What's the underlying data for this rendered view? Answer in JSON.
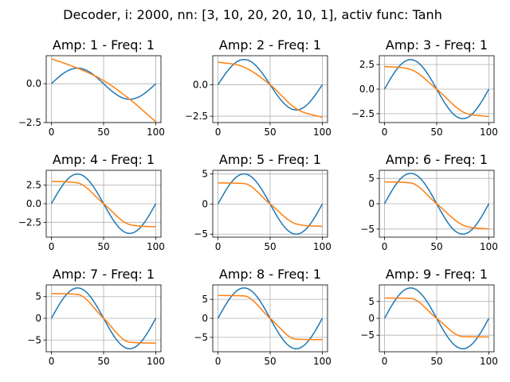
{
  "suptitle": "Decoder, i: 2000, nn: [3, 10, 20, 20, 10, 1], activ func: Tanh",
  "colors": {
    "target": "#1f77b4",
    "prediction": "#ff7f0e",
    "grid": "#b0b0b0"
  },
  "chart_data": [
    {
      "type": "line",
      "title": "Amp: 1 - Freq: 1",
      "xlim": [
        0,
        100
      ],
      "ylim": [
        -2.5,
        1.8
      ],
      "xticks": [
        0,
        50,
        100
      ],
      "yticks": [
        -2.5,
        0.0
      ],
      "ytick_labels": [
        "−2.5",
        "0.0"
      ],
      "grid": true,
      "series": [
        {
          "kind": "sine",
          "amp": 1
        },
        {
          "kind": "curve",
          "x": [
            0,
            25,
            50,
            75,
            100
          ],
          "y": [
            1.6,
            1.0,
            0.2,
            -1.0,
            -2.45
          ]
        }
      ]
    },
    {
      "type": "line",
      "title": "Amp: 2 - Freq: 1",
      "xlim": [
        0,
        100
      ],
      "ylim": [
        -3.0,
        2.3
      ],
      "xticks": [
        0,
        50,
        100
      ],
      "yticks": [
        -2.5,
        0.0
      ],
      "ytick_labels": [
        "−2.5",
        "0.0"
      ],
      "grid": true,
      "series": [
        {
          "kind": "sine",
          "amp": 2
        },
        {
          "kind": "curve",
          "x": [
            0,
            25,
            50,
            75,
            100
          ],
          "y": [
            1.8,
            1.4,
            0.0,
            -1.9,
            -2.6
          ]
        }
      ]
    },
    {
      "type": "line",
      "title": "Amp: 3 - Freq: 1",
      "xlim": [
        0,
        100
      ],
      "ylim": [
        -3.4,
        3.4
      ],
      "xticks": [
        0,
        50,
        100
      ],
      "yticks": [
        -2.5,
        0.0,
        2.5
      ],
      "ytick_labels": [
        "−2.5",
        "0.0",
        "2.5"
      ],
      "grid": true,
      "series": [
        {
          "kind": "sine",
          "amp": 3
        },
        {
          "kind": "curve",
          "x": [
            0,
            25,
            50,
            75,
            100
          ],
          "y": [
            2.3,
            2.0,
            0.0,
            -2.3,
            -2.8
          ]
        }
      ]
    },
    {
      "type": "line",
      "title": "Amp: 4 - Freq: 1",
      "xlim": [
        0,
        100
      ],
      "ylim": [
        -4.5,
        4.5
      ],
      "xticks": [
        0,
        50,
        100
      ],
      "yticks": [
        -2.5,
        0.0,
        2.5
      ],
      "ytick_labels": [
        "−2.5",
        "0.0",
        "2.5"
      ],
      "grid": true,
      "series": [
        {
          "kind": "sine",
          "amp": 4
        },
        {
          "kind": "curve",
          "x": [
            0,
            25,
            50,
            75,
            100
          ],
          "y": [
            3.0,
            2.8,
            0.0,
            -2.8,
            -3.1
          ]
        }
      ]
    },
    {
      "type": "line",
      "title": "Amp: 5 - Freq: 1",
      "xlim": [
        0,
        100
      ],
      "ylim": [
        -5.5,
        5.6
      ],
      "xticks": [
        0,
        50,
        100
      ],
      "yticks": [
        -5,
        0,
        5
      ],
      "ytick_labels": [
        "−5",
        "0",
        "5"
      ],
      "grid": true,
      "series": [
        {
          "kind": "sine",
          "amp": 5
        },
        {
          "kind": "curve",
          "x": [
            0,
            25,
            50,
            75,
            100
          ],
          "y": [
            3.5,
            3.4,
            0.0,
            -3.3,
            -3.7
          ]
        }
      ]
    },
    {
      "type": "line",
      "title": "Amp: 6 - Freq: 1",
      "xlim": [
        0,
        100
      ],
      "ylim": [
        -6.6,
        6.6
      ],
      "xticks": [
        0,
        50,
        100
      ],
      "yticks": [
        -5,
        0,
        5
      ],
      "ytick_labels": [
        "−5",
        "0",
        "5"
      ],
      "grid": true,
      "series": [
        {
          "kind": "sine",
          "amp": 6
        },
        {
          "kind": "curve",
          "x": [
            0,
            25,
            50,
            75,
            100
          ],
          "y": [
            4.3,
            4.1,
            0.0,
            -4.2,
            -5.0
          ]
        }
      ]
    },
    {
      "type": "line",
      "title": "Amp: 7 - Freq: 1",
      "xlim": [
        0,
        100
      ],
      "ylim": [
        -7.7,
        7.7
      ],
      "xticks": [
        0,
        50,
        100
      ],
      "yticks": [
        -5,
        0,
        5
      ],
      "ytick_labels": [
        "−5",
        "0",
        "5"
      ],
      "grid": true,
      "series": [
        {
          "kind": "sine",
          "amp": 7
        },
        {
          "kind": "curve",
          "x": [
            0,
            25,
            50,
            75,
            100
          ],
          "y": [
            5.7,
            5.5,
            0.0,
            -5.5,
            -5.7
          ]
        }
      ]
    },
    {
      "type": "line",
      "title": "Amp: 8 - Freq: 1",
      "xlim": [
        0,
        100
      ],
      "ylim": [
        -8.8,
        8.8
      ],
      "xticks": [
        0,
        50,
        100
      ],
      "yticks": [
        -5,
        0,
        5
      ],
      "ytick_labels": [
        "−5",
        "0",
        "5"
      ],
      "grid": true,
      "series": [
        {
          "kind": "sine",
          "amp": 8
        },
        {
          "kind": "curve",
          "x": [
            0,
            25,
            50,
            75,
            100
          ],
          "y": [
            6.0,
            5.9,
            0.0,
            -5.5,
            -5.6
          ]
        }
      ]
    },
    {
      "type": "line",
      "title": "Amp: 9 - Freq: 1",
      "xlim": [
        0,
        100
      ],
      "ylim": [
        -9.9,
        9.9
      ],
      "xticks": [
        0,
        50,
        100
      ],
      "yticks": [
        -5,
        0,
        5
      ],
      "ytick_labels": [
        "−5",
        "0",
        "5"
      ],
      "grid": true,
      "series": [
        {
          "kind": "sine",
          "amp": 9
        },
        {
          "kind": "curve",
          "x": [
            0,
            25,
            50,
            75,
            100
          ],
          "y": [
            6.0,
            5.9,
            0.0,
            -5.4,
            -5.5
          ]
        }
      ]
    }
  ]
}
